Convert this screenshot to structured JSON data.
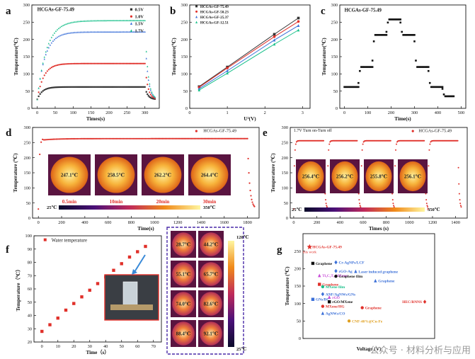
{
  "figure": {
    "watermark": "公众号 · 材料分析与应用",
    "colors": {
      "red": "#e0302a",
      "dark": "#333333",
      "blue": "#3a6fd8",
      "green": "#18c08a",
      "black": "#111111"
    }
  },
  "chart_data": [
    {
      "panel": "a",
      "type": "scatter",
      "title": "HCGAs-GF-75.49",
      "xlabel": "Times(s)",
      "ylabel": "Temperature(℃)",
      "xlim": [
        -15,
        340
      ],
      "ylim": [
        0,
        300
      ],
      "xticks": [
        0,
        50,
        100,
        150,
        200,
        250,
        300
      ],
      "yticks": [
        0,
        50,
        100,
        150,
        200,
        250,
        300
      ],
      "legend": [
        "0.5V",
        "1.0V",
        "1.5V",
        "1.7V"
      ],
      "series": [
        {
          "name": "0.5V",
          "color": "#333333",
          "plateau": 62,
          "start": 26
        },
        {
          "name": "1.0V",
          "color": "#e0302a",
          "plateau": 130,
          "start": 26
        },
        {
          "name": "1.5V",
          "color": "#3a6fd8",
          "plateau": 222,
          "start": 26
        },
        {
          "name": "1.7V",
          "color": "#18c08a",
          "plateau": 255,
          "start": 26
        }
      ]
    },
    {
      "panel": "b",
      "type": "line",
      "xlabel": "U²(V)",
      "ylabel": "Temperature(℃)",
      "xlim": [
        0,
        3.2
      ],
      "ylim": [
        0,
        300
      ],
      "xticks": [
        0,
        1,
        2,
        3
      ],
      "yticks": [
        0,
        50,
        100,
        150,
        200,
        250,
        300
      ],
      "x": [
        0.25,
        1.0,
        2.25,
        2.89
      ],
      "series": [
        {
          "name": "HCGAs-GF-75.49",
          "color": "#333333",
          "values": [
            63,
            120,
            215,
            262
          ]
        },
        {
          "name": "HCGAs-GF-50.23",
          "color": "#e0302a",
          "values": [
            61,
            117,
            208,
            252
          ]
        },
        {
          "name": "HCGAs-GF-25.37",
          "color": "#3a6fd8",
          "values": [
            57,
            109,
            198,
            240
          ]
        },
        {
          "name": "HCGAs-GF-12.51",
          "color": "#18c08a",
          "values": [
            53,
            102,
            186,
            227
          ]
        }
      ]
    },
    {
      "panel": "c",
      "type": "scatter",
      "title": "HCGAs-GF-75.49",
      "xlabel": "Time(s)",
      "ylabel": "Temperature(℃)",
      "xlim": [
        -20,
        520
      ],
      "ylim": [
        0,
        300
      ],
      "xticks": [
        0,
        100,
        200,
        300,
        400,
        500
      ],
      "yticks": [
        0,
        50,
        100,
        150,
        200,
        250,
        300
      ],
      "steps": [
        {
          "t0": 0,
          "t1": 60,
          "v": 62
        },
        {
          "t0": 60,
          "t1": 120,
          "v": 120
        },
        {
          "t0": 120,
          "t1": 180,
          "v": 213
        },
        {
          "t0": 180,
          "t1": 240,
          "v": 258
        },
        {
          "t0": 240,
          "t1": 300,
          "v": 213
        },
        {
          "t0": 300,
          "t1": 360,
          "v": 120
        },
        {
          "t0": 360,
          "t1": 420,
          "v": 62
        },
        {
          "t0": 420,
          "t1": 470,
          "v": 35
        }
      ]
    },
    {
      "panel": "d",
      "type": "scatter",
      "legend": "HCGAs-GF-75.49",
      "xlabel": "Time(s)",
      "ylabel": "Temperature (℃)",
      "xlim": [
        -50,
        1900
      ],
      "ylim": [
        0,
        300
      ],
      "xticks": [
        0,
        200,
        400,
        600,
        800,
        1000,
        1200,
        1400,
        1600,
        1800
      ],
      "yticks": [
        0,
        50,
        100,
        150,
        200,
        250,
        300
      ],
      "plateau": 263,
      "thermal_labels": [
        "247.1℃",
        "258.5℃",
        "262.2℃",
        "264.4℃"
      ],
      "time_labels": [
        "0.5min",
        "10min",
        "20min",
        "30min"
      ],
      "scale_min": "25℃",
      "scale_max": "350℃"
    },
    {
      "panel": "e",
      "type": "scatter",
      "legend": "HCGAs-GF-75.49",
      "annotation": "1.7V Turn on-Turn off",
      "xlabel": "Times (s)",
      "ylabel": "Temperature (℃)",
      "xlim": [
        -30,
        1500
      ],
      "ylim": [
        0,
        300
      ],
      "xticks": [
        0,
        200,
        400,
        600,
        800,
        1000,
        1200,
        1400
      ],
      "yticks": [
        0,
        50,
        100,
        150,
        200,
        250,
        300
      ],
      "plateau": 256,
      "cycles": [
        [
          0,
          260
        ],
        [
          290,
          550
        ],
        [
          580,
          840
        ],
        [
          870,
          1130
        ],
        [
          1160,
          1420
        ]
      ],
      "thermal_labels": [
        "256.4℃",
        "256.2℃",
        "255.8℃",
        "256.1℃"
      ],
      "scale_min": "25℃",
      "scale_max": "350℃"
    },
    {
      "panel": "f",
      "type": "scatter",
      "legend": "Water temperature",
      "xlabel": "Time（s）",
      "ylabel": "Temperature（℃）",
      "xlim": [
        -5,
        75
      ],
      "ylim": [
        20,
        100
      ],
      "xticks": [
        0,
        10,
        20,
        30,
        40,
        50,
        60,
        70
      ],
      "yticks": [
        20,
        30,
        40,
        50,
        60,
        70,
        80,
        90,
        100
      ],
      "x": [
        0,
        5,
        10,
        15,
        20,
        25,
        30,
        35,
        40,
        45,
        50,
        55,
        60,
        65
      ],
      "values": [
        28,
        33,
        38,
        44,
        49,
        54,
        59,
        64,
        69,
        74,
        79,
        84,
        88,
        92
      ],
      "thermal_labels": [
        "28.7℃",
        "44.2℃",
        "55.1℃",
        "65.7℃",
        "74.0℃",
        "82.6℃",
        "88.4℃",
        "92.1℃"
      ],
      "scale_max": "120℃",
      "scale_min": "25℃"
    },
    {
      "panel": "g",
      "type": "scatter",
      "xlabel": "Voltage (V)",
      "ylabel": "Temperature (℃)",
      "xlim": [
        0,
        40
      ],
      "ylim": [
        0,
        300
      ],
      "yticks": [
        0,
        50,
        100,
        150,
        200,
        250
      ],
      "points": [
        {
          "label": "HCGAs-GF-75.49",
          "note": "this work",
          "x": 2,
          "y": 262,
          "color": "#e0302a",
          "marker": "star"
        },
        {
          "label": "Graphene",
          "x": 3,
          "y": 215,
          "color": "#111111",
          "marker": "square"
        },
        {
          "label": "Cr-AgNPs/LCF",
          "x": 10,
          "y": 218,
          "color": "#3a6fd8",
          "marker": "diamond"
        },
        {
          "label": "rGO-Ag",
          "x": 10,
          "y": 193,
          "color": "#3a6fd8",
          "marker": "diamond"
        },
        {
          "label": "Laser induced graphene",
          "x": 16,
          "y": 192,
          "color": "#3a6fd8",
          "marker": "triangle"
        },
        {
          "label": "Ti₃C₂Tₓ MXene",
          "x": 5,
          "y": 180,
          "color": "#c84bd8",
          "marker": "triangle"
        },
        {
          "label": "Graphene film",
          "x": 10,
          "y": 178,
          "color": "#111111",
          "marker": "circle"
        },
        {
          "label": "Graphene",
          "x": 22,
          "y": 165,
          "color": "#3a6fd8",
          "marker": "triangle"
        },
        {
          "label": "Graphene",
          "x": 5,
          "y": 155,
          "color": "#e0302a",
          "marker": "square"
        },
        {
          "label": "MXene film",
          "x": 6,
          "y": 148,
          "color": "#18c08a",
          "marker": "circle"
        },
        {
          "label": "ANF/AgNWs/GNs",
          "x": 6,
          "y": 127,
          "color": "#3a6fd8",
          "marker": "diamond"
        },
        {
          "label": "rGO",
          "x": 8,
          "y": 118,
          "color": "#c84bd8",
          "marker": "triangle"
        },
        {
          "label": "GNs/BC",
          "x": 3,
          "y": 112,
          "color": "#3a6fd8",
          "marker": "square"
        },
        {
          "label": "rGO/MXene",
          "x": 8,
          "y": 105,
          "color": "#111111",
          "marker": "square"
        },
        {
          "label": "HEC/RNNS",
          "x": 37,
          "y": 105,
          "color": "#e0302a",
          "marker": "diamond"
        },
        {
          "label": "MXene/HG",
          "x": 6,
          "y": 92,
          "color": "#e0302a",
          "marker": "circle"
        },
        {
          "label": "Graphene",
          "x": 18,
          "y": 88,
          "color": "#e0302a",
          "marker": "circle"
        },
        {
          "label": "AgNWs/CO",
          "x": 6,
          "y": 72,
          "color": "#3a6fd8",
          "marker": "triangle"
        },
        {
          "label": "CNF-40%@Cu-Fe",
          "x": 14,
          "y": 50,
          "color": "#e0a020",
          "marker": "circle"
        }
      ]
    }
  ]
}
